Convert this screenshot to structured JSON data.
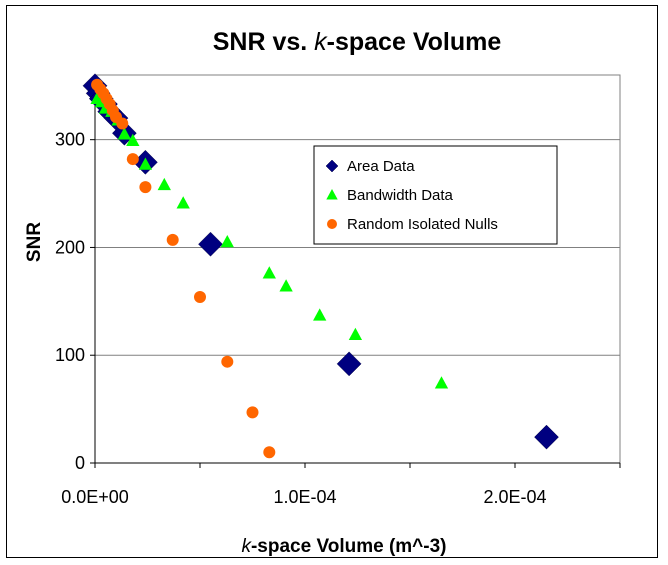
{
  "chart_data": {
    "type": "scatter",
    "title": {
      "prefix": "SNR vs. ",
      "italic": "k",
      "suffix": "-space Volume"
    },
    "xlabel": {
      "italic": "k",
      "suffix": "-space Volume (m^-3)"
    },
    "ylabel": "SNR",
    "xlim": [
      0,
      0.00025
    ],
    "ylim": [
      0,
      360
    ],
    "x_ticks": [
      {
        "value": 0,
        "label": "0.0E+00"
      },
      {
        "value": 0.0001,
        "label": "1.0E-04"
      },
      {
        "value": 0.0002,
        "label": "2.0E-04"
      }
    ],
    "y_ticks": [
      {
        "value": 0,
        "label": "0"
      },
      {
        "value": 100,
        "label": "100"
      },
      {
        "value": 200,
        "label": "200"
      },
      {
        "value": 300,
        "label": "300"
      }
    ],
    "grid": "horizontal",
    "legend_position": "center-right",
    "series": [
      {
        "name": "Area Data",
        "marker": "diamond",
        "color": "#000080",
        "points": [
          [
            0.0,
            350
          ],
          [
            1.5e-06,
            343
          ],
          [
            3e-06,
            338
          ],
          [
            5e-06,
            333
          ],
          [
            7e-06,
            326
          ],
          [
            1e-05,
            320
          ],
          [
            1.4e-05,
            306
          ],
          [
            2.4e-05,
            279
          ],
          [
            5.5e-05,
            203
          ],
          [
            0.000121,
            92
          ],
          [
            0.000215,
            24
          ]
        ]
      },
      {
        "name": "Bandwidth Data",
        "marker": "triangle",
        "color": "#00FF00",
        "points": [
          [
            1e-06,
            338
          ],
          [
            3e-06,
            335
          ],
          [
            5e-06,
            329
          ],
          [
            8e-06,
            326
          ],
          [
            1.1e-05,
            318
          ],
          [
            1.4e-05,
            305
          ],
          [
            1.8e-05,
            299
          ],
          [
            2.4e-05,
            277
          ],
          [
            3.3e-05,
            258
          ],
          [
            4.2e-05,
            241
          ],
          [
            6.3e-05,
            205
          ],
          [
            8.3e-05,
            176
          ],
          [
            9.1e-05,
            164
          ],
          [
            0.000107,
            137
          ],
          [
            0.000124,
            119
          ],
          [
            0.000165,
            74
          ]
        ]
      },
      {
        "name": "Random Isolated Nulls",
        "marker": "circle",
        "color": "#FF6600",
        "points": [
          [
            1e-06,
            351
          ],
          [
            2.5e-06,
            347
          ],
          [
            4e-06,
            343
          ],
          [
            5.5e-06,
            338
          ],
          [
            7e-06,
            333
          ],
          [
            8.5e-06,
            327
          ],
          [
            1e-05,
            321
          ],
          [
            1.3e-05,
            315
          ],
          [
            1.8e-05,
            282
          ],
          [
            2.4e-05,
            256
          ],
          [
            3.7e-05,
            207
          ],
          [
            5e-05,
            154
          ],
          [
            6.3e-05,
            94
          ],
          [
            7.5e-05,
            47
          ],
          [
            8.3e-05,
            10
          ]
        ]
      }
    ]
  }
}
